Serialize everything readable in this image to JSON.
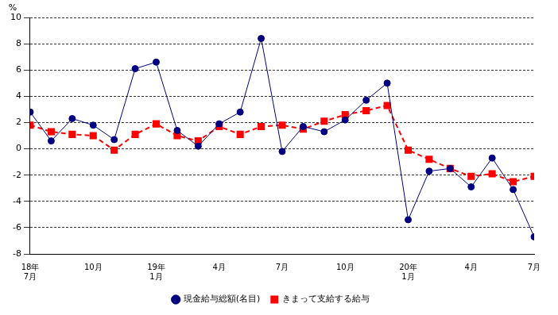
{
  "chart_data": {
    "type": "line",
    "ylabel": "%",
    "categories": [
      "18年\n7月",
      null,
      null,
      "10月",
      null,
      null,
      "19年\n1月",
      null,
      null,
      "4月",
      null,
      null,
      "7月",
      null,
      null,
      "10月",
      null,
      null,
      "20年\n1月",
      null,
      null,
      "4月",
      null,
      null,
      "7月"
    ],
    "series": [
      {
        "name": "現金給与総額(名目)",
        "color": "#000080",
        "marker": "circle",
        "line_style": "solid",
        "values": [
          2.8,
          0.6,
          2.3,
          1.8,
          0.7,
          6.1,
          6.6,
          1.4,
          0.2,
          1.9,
          2.8,
          8.4,
          -0.2,
          1.7,
          1.3,
          2.2,
          3.7,
          5.0,
          -5.4,
          -1.7,
          -1.5,
          -2.9,
          -0.7,
          -3.1,
          -6.7
        ]
      },
      {
        "name": "きまって支給する給与",
        "color": "#ff0000",
        "marker": "square",
        "line_style": "dashed",
        "values": [
          1.8,
          1.3,
          1.1,
          1.0,
          -0.1,
          1.1,
          1.9,
          1.0,
          0.6,
          1.7,
          1.1,
          1.7,
          1.8,
          1.5,
          2.1,
          2.6,
          2.9,
          3.3,
          -0.1,
          -0.8,
          -1.5,
          -2.1,
          -1.9,
          -2.5,
          -2.1
        ]
      }
    ],
    "ylim": [
      -8,
      10
    ],
    "yticks": [
      -8,
      -6,
      -4,
      -2,
      0,
      2,
      4,
      6,
      8,
      10
    ],
    "grid": true,
    "legend": "bottom"
  }
}
